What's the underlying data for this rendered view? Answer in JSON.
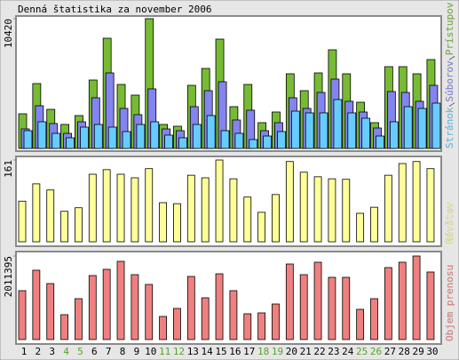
{
  "chart_data": {
    "type": "bar",
    "title": "Denná štatistika za november 2006",
    "categories": [
      "1",
      "2",
      "3",
      "4",
      "5",
      "6",
      "7",
      "8",
      "9",
      "10",
      "11",
      "12",
      "13",
      "14",
      "15",
      "16",
      "17",
      "18",
      "19",
      "20",
      "21",
      "22",
      "23",
      "24",
      "25",
      "26",
      "27",
      "28",
      "29",
      "30"
    ],
    "category_colors": [
      "#000000",
      "#000000",
      "#000000",
      "#5aa02c",
      "#5aa02c",
      "#000000",
      "#000000",
      "#000000",
      "#000000",
      "#000000",
      "#5aa02c",
      "#5aa02c",
      "#000000",
      "#000000",
      "#000000",
      "#000000",
      "#000000",
      "#5aa02c",
      "#5aa02c",
      "#000000",
      "#000000",
      "#000000",
      "#000000",
      "#000000",
      "#5aa02c",
      "#5aa02c",
      "#000000",
      "#000000",
      "#000000",
      "#000000"
    ],
    "panels": [
      {
        "ylim": [
          0,
          10420
        ],
        "yticks": [
          10420
        ],
        "series": [
          {
            "name": "Prístupov",
            "color": "#77bb33",
            "values": [
              2783,
              5210,
              3140,
              1927,
              2641,
              5495,
              8850,
              5139,
              4282,
              10420,
              1927,
              1784,
              5067,
              6423,
              8778,
              3354,
              5139,
              2070,
              2926,
              5995,
              4639,
              6066,
              7922,
              5995,
              3711,
              2070,
              6566,
              6566,
              5995,
              7137
            ]
          },
          {
            "name": "Súborov",
            "color": "#8484f0",
            "values": [
              1570,
              3426,
              1998,
              1213,
              2141,
              4068,
              6066,
              3212,
              2712,
              4782,
              1570,
              1427,
              3354,
              4639,
              5353,
              2284,
              3069,
              1427,
              2070,
              4068,
              3212,
              4496,
              5567,
              3783,
              2926,
              1642,
              4568,
              4496,
              3783,
              5067
            ]
          },
          {
            "name": "Stránok",
            "color": "#66ccff",
            "values": [
              1427,
              2141,
              1213,
              856,
              1713,
              1927,
              1713,
              1356,
              1927,
              2141,
              1071,
              856,
              1927,
              2641,
              1427,
              1213,
              714,
              999,
              1356,
              2998,
              2855,
              2855,
              3925,
              2855,
              2427,
              999,
              2141,
              3354,
              3212,
              3640
            ]
          }
        ]
      },
      {
        "ylim": [
          0,
          161
        ],
        "yticks": [
          161
        ],
        "series": [
          {
            "name": "Návštev",
            "color": "#ffff99",
            "values": [
              80,
              114,
              102,
              60,
              67,
              133,
              142,
              133,
              126,
              144,
              77,
              75,
              131,
              126,
              161,
              124,
              88,
              58,
              93,
              158,
              137,
              128,
              124,
              123,
              56,
              68,
              131,
              154,
              158,
              144
            ]
          }
        ]
      },
      {
        "ylim": [
          0,
          2011395
        ],
        "yticks": [
          2011395
        ],
        "series": [
          {
            "name": "Objem prenosu",
            "color": "#f08080",
            "values": [
              1176900,
              1669000,
              1348100,
              599100,
              984300,
              1540700,
              1690400,
              1883000,
              1562000,
              1326700,
              556300,
              748900,
              1519300,
              1005700,
              1583500,
              1176900,
              620500,
              641900,
              855900,
              1818800,
              1562000,
              1861600,
              1497900,
              1497900,
              727500,
              984300,
              1733200,
              1861600,
              2011395,
              1626200
            ]
          }
        ]
      }
    ]
  }
}
